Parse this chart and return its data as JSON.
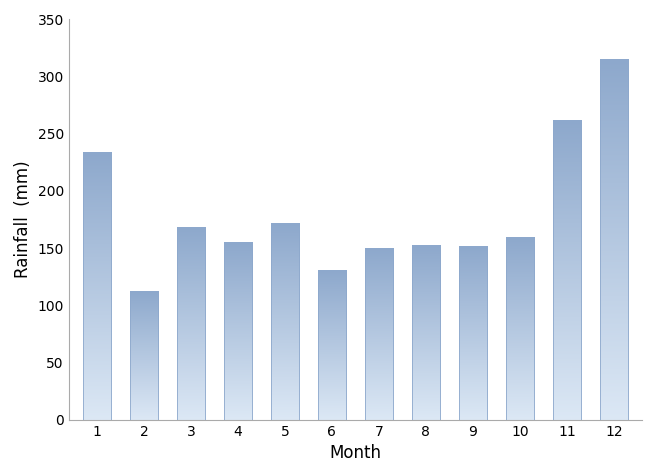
{
  "months": [
    1,
    2,
    3,
    4,
    5,
    6,
    7,
    8,
    9,
    10,
    11,
    12
  ],
  "values": [
    234,
    112,
    168,
    155,
    172,
    131,
    150,
    153,
    152,
    160,
    262,
    315
  ],
  "xlabel": "Month",
  "ylabel": "Rainfall  (mm)",
  "ylim": [
    0,
    350
  ],
  "yticks": [
    0,
    50,
    100,
    150,
    200,
    250,
    300,
    350
  ],
  "bar_color_top": "#8da8cc",
  "bar_color_bottom": "#dce8f5",
  "bar_edge_color": "#8da8cc",
  "background_color": "#ffffff",
  "xlabel_fontsize": 12,
  "ylabel_fontsize": 12,
  "tick_fontsize": 10,
  "bar_width": 0.6
}
